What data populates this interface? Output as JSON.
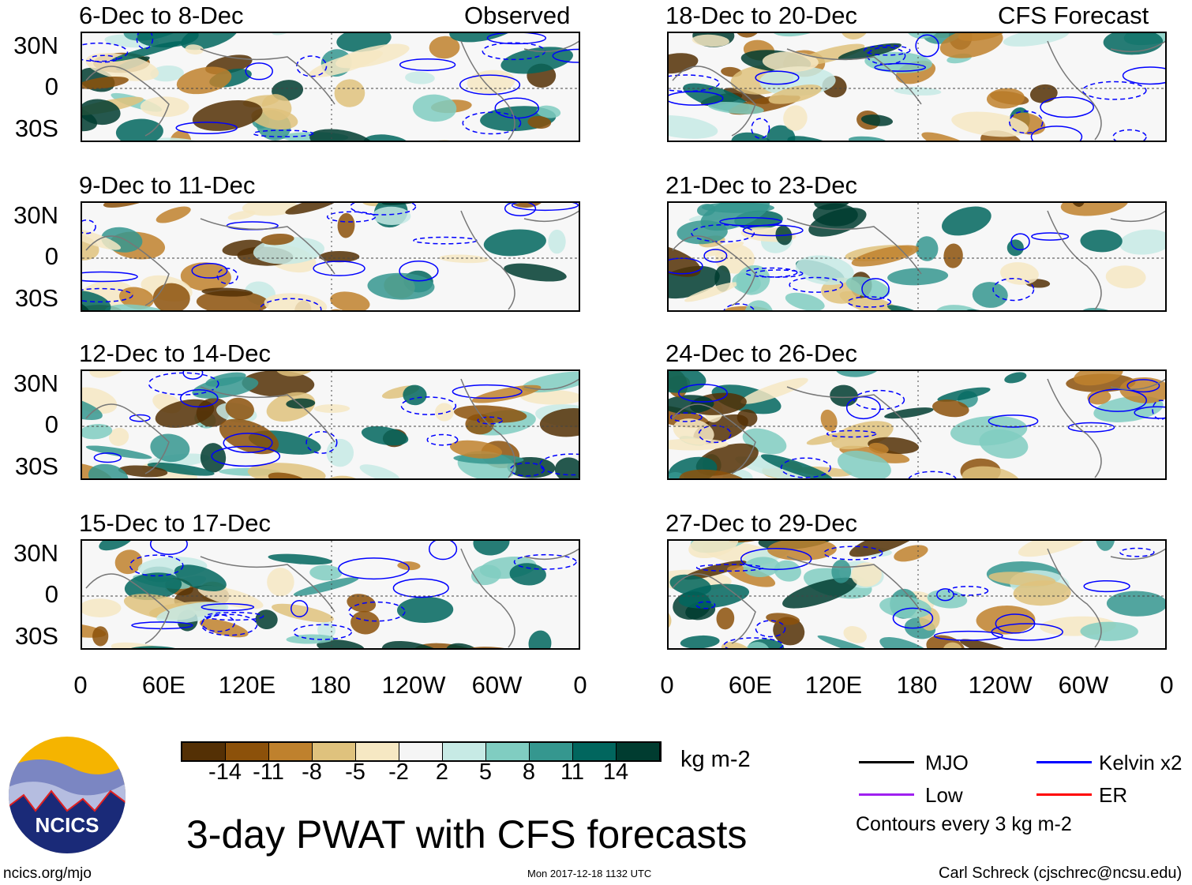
{
  "observed_label": "Observed",
  "forecast_label": "CFS Forecast",
  "panels": [
    {
      "title": "6-Dec to 8-Dec",
      "group": "observed"
    },
    {
      "title": "9-Dec to 11-Dec",
      "group": "observed"
    },
    {
      "title": "12-Dec to 14-Dec",
      "group": "observed"
    },
    {
      "title": "15-Dec to 17-Dec",
      "group": "observed"
    },
    {
      "title": "18-Dec to 20-Dec",
      "group": "forecast"
    },
    {
      "title": "21-Dec to 23-Dec",
      "group": "forecast"
    },
    {
      "title": "24-Dec to 26-Dec",
      "group": "forecast"
    },
    {
      "title": "27-Dec to 29-Dec",
      "group": "forecast"
    }
  ],
  "lat_labels": [
    "30N",
    "0",
    "30S"
  ],
  "lon_labels": [
    "0",
    "60E",
    "120E",
    "180",
    "120W",
    "60W",
    "0"
  ],
  "colorbar": {
    "colors": [
      "#543005",
      "#8c510a",
      "#bf812d",
      "#dfc27d",
      "#f6e8c3",
      "#f5f5f5",
      "#c7eae5",
      "#80cdc1",
      "#35978f",
      "#01665e",
      "#003c30"
    ],
    "labels": [
      "-14",
      "-11",
      "-8",
      "-5",
      "-2",
      "2",
      "5",
      "8",
      "11",
      "14"
    ],
    "units": "kg m-2"
  },
  "legend": {
    "items": [
      {
        "label": "MJO",
        "color": "#000000"
      },
      {
        "label": "Kelvin x2",
        "color": "#0000ff"
      },
      {
        "label": "Low",
        "color": "#a020f0"
      },
      {
        "label": "ER",
        "color": "#ff0000"
      }
    ],
    "note": "Contours every 3 kg m-2"
  },
  "title": "3-day PWAT with CFS forecasts",
  "logo_text": "NCICS",
  "url": "ncics.org/mjo",
  "timestamp": "Mon 2017-12-18 1132 UTC",
  "author": "Carl Schreck (cjschrec@ncsu.edu)"
}
